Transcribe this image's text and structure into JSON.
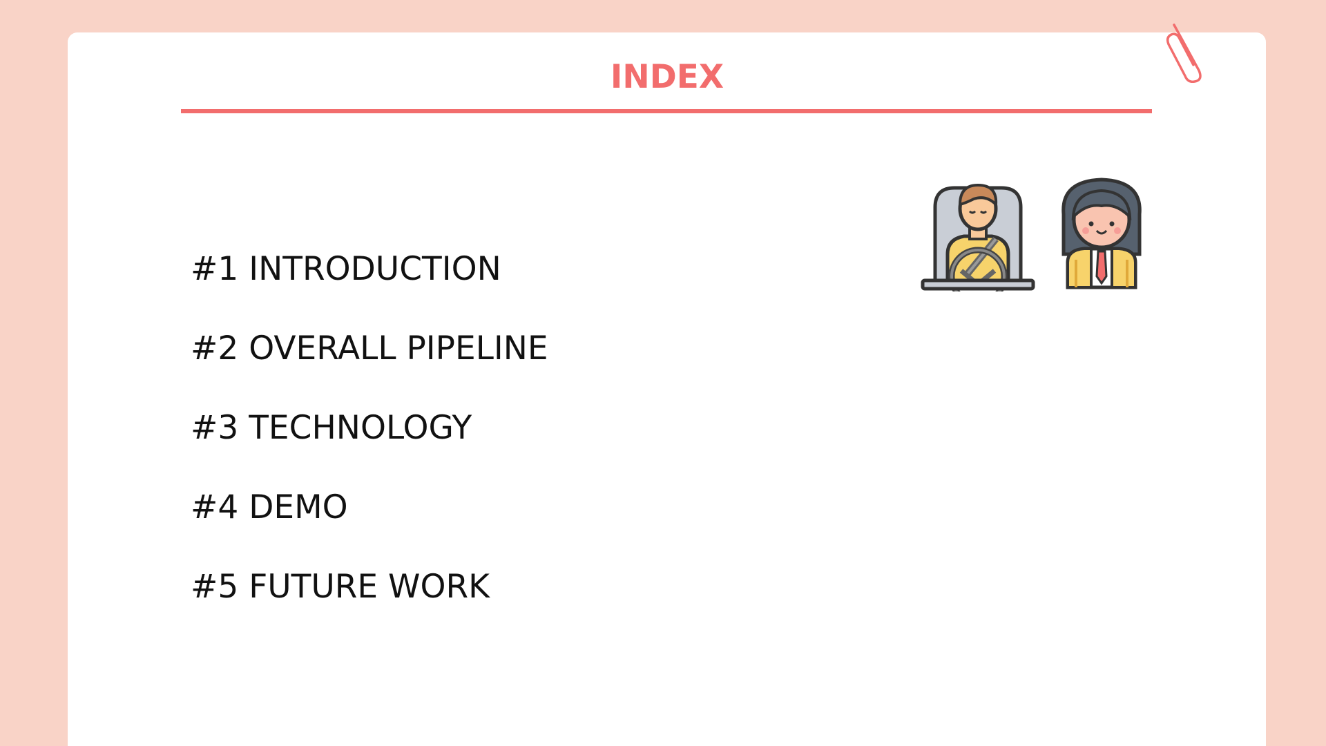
{
  "slide": {
    "title": "INDEX",
    "items": [
      "#1 INTRODUCTION",
      "#2 OVERALL PIPELINE",
      "#3 TECHNOLOGY",
      "#4 DEMO",
      "#5 FUTURE WORK"
    ],
    "icons": [
      "paperclip-icon",
      "driver-icon",
      "student-girl-icon"
    ],
    "colors": {
      "background": "#f9d3c7",
      "card": "#ffffff",
      "accent": "#f26d6d",
      "text": "#111111"
    }
  }
}
